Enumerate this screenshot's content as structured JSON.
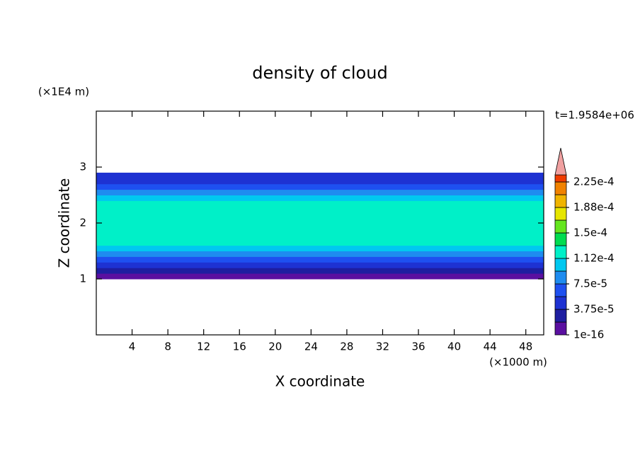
{
  "chart_data": {
    "type": "contour",
    "title": "density of cloud",
    "x_label": "X coordinate",
    "y_label": "Z coordinate",
    "x_unit": "(×1000 m)",
    "y_unit": "(×1E4 m)",
    "annotation": "t=1.9584e+06",
    "xlim": [
      0,
      50
    ],
    "ylim": [
      0,
      4
    ],
    "xticks": [
      4,
      8,
      12,
      16,
      20,
      24,
      28,
      32,
      36,
      40,
      44,
      48
    ],
    "yticks": [
      1,
      2,
      3
    ],
    "field": {
      "z_edges": [
        1.0,
        1.1,
        1.2,
        1.3,
        1.4,
        1.5,
        1.6,
        1.7,
        1.8,
        1.9,
        2.0,
        2.1,
        2.2,
        2.3,
        2.4,
        2.5,
        2.6,
        2.7,
        2.8,
        2.9
      ],
      "values": [
        1.5e-05,
        3e-05,
        5e-05,
        7e-05,
        9e-05,
        0.000105,
        0.00012,
        0.00013,
        0.00013,
        0.00013,
        0.000125,
        0.00012,
        0.000115,
        0.000115,
        0.0001,
        8.5e-05,
        7e-05,
        5.5e-05,
        4e-05
      ]
    },
    "colorbar": {
      "ticks": [
        1e-16,
        {
          "value": 3.75e-05,
          "label": "3.75e-5"
        },
        {
          "value": 7.5e-05,
          "label": "7.5e-5"
        },
        {
          "value": 0.0001125,
          "label": "1.12e-4"
        },
        {
          "value": 0.00015,
          "label": "1.5e-4"
        },
        {
          "value": 0.0001875,
          "label": "1.88e-4"
        },
        {
          "value": 0.000225,
          "label": "2.25e-4"
        }
      ],
      "colors": [
        "#5a0fa0",
        "#1e1ea0",
        "#1e32d2",
        "#1e50f0",
        "#1e8cf0",
        "#00c8f0",
        "#00f0c8",
        "#00dc50",
        "#64e61e",
        "#e6e600",
        "#f0b400",
        "#f08200",
        "#f03c00"
      ],
      "over_color": "#f0a0a0"
    }
  }
}
